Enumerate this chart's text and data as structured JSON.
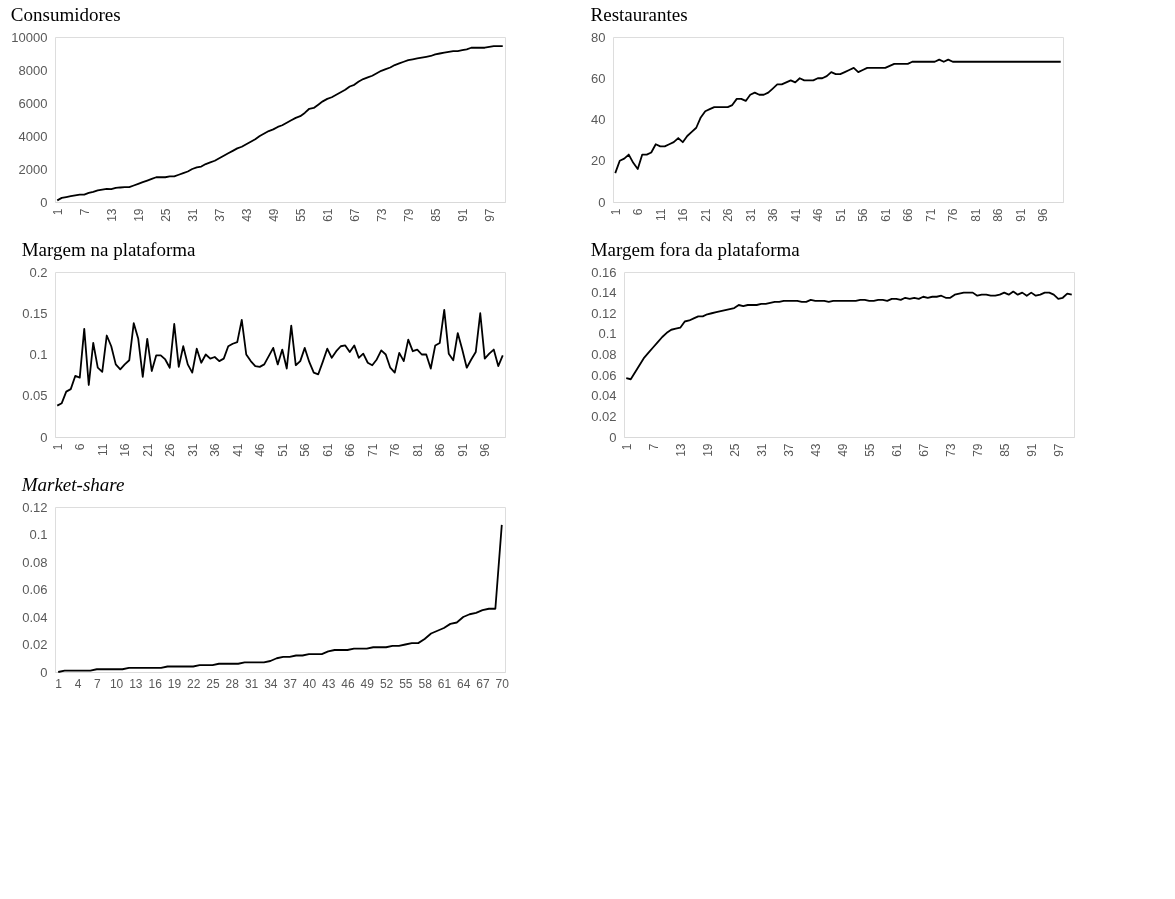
{
  "chart_data": [
    {
      "type": "line",
      "title": "Consumidores",
      "color": "#000000",
      "ylim": [
        0,
        10000
      ],
      "yticks": [
        0,
        2000,
        4000,
        6000,
        8000,
        10000
      ],
      "categories": [
        "1",
        null,
        null,
        null,
        null,
        null,
        "7",
        null,
        null,
        null,
        null,
        null,
        "13",
        null,
        null,
        null,
        null,
        null,
        "19",
        null,
        null,
        null,
        null,
        null,
        "25",
        null,
        null,
        null,
        null,
        null,
        "31",
        null,
        null,
        null,
        null,
        null,
        "37",
        null,
        null,
        null,
        null,
        null,
        "43",
        null,
        null,
        null,
        null,
        null,
        "49",
        null,
        null,
        null,
        null,
        null,
        "55",
        null,
        null,
        null,
        null,
        null,
        "61",
        null,
        null,
        null,
        null,
        null,
        "67",
        null,
        null,
        null,
        null,
        null,
        "73",
        null,
        null,
        null,
        null,
        null,
        "79",
        null,
        null,
        null,
        null,
        null,
        "85",
        null,
        null,
        null,
        null,
        null,
        "91",
        null,
        null,
        null,
        null,
        null,
        "97",
        null,
        null,
        null
      ],
      "values": [
        100,
        250,
        300,
        350,
        400,
        450,
        450,
        550,
        620,
        700,
        750,
        800,
        780,
        850,
        880,
        900,
        900,
        1000,
        1100,
        1200,
        1300,
        1400,
        1500,
        1500,
        1500,
        1550,
        1550,
        1650,
        1750,
        1850,
        2000,
        2100,
        2150,
        2300,
        2400,
        2500,
        2650,
        2800,
        2950,
        3100,
        3250,
        3350,
        3500,
        3650,
        3800,
        4000,
        4150,
        4300,
        4400,
        4550,
        4650,
        4800,
        4950,
        5100,
        5200,
        5400,
        5650,
        5700,
        5900,
        6100,
        6250,
        6350,
        6500,
        6650,
        6800,
        7000,
        7100,
        7300,
        7450,
        7550,
        7650,
        7800,
        7950,
        8050,
        8150,
        8300,
        8400,
        8500,
        8600,
        8650,
        8700,
        8750,
        8800,
        8850,
        8950,
        9000,
        9050,
        9100,
        9150,
        9150,
        9200,
        9250,
        9350,
        9350,
        9350,
        9350,
        9400,
        9450,
        9450,
        9450
      ]
    },
    {
      "type": "line",
      "title": "Restaurantes",
      "color": "#000000",
      "ylim": [
        0,
        80
      ],
      "yticks": [
        0,
        20,
        40,
        60,
        80
      ],
      "categories": [
        "1",
        null,
        null,
        null,
        null,
        "6",
        null,
        null,
        null,
        null,
        "11",
        null,
        null,
        null,
        null,
        "16",
        null,
        null,
        null,
        null,
        "21",
        null,
        null,
        null,
        null,
        "26",
        null,
        null,
        null,
        null,
        "31",
        null,
        null,
        null,
        null,
        "36",
        null,
        null,
        null,
        null,
        "41",
        null,
        null,
        null,
        null,
        "46",
        null,
        null,
        null,
        null,
        "51",
        null,
        null,
        null,
        null,
        "56",
        null,
        null,
        null,
        null,
        "61",
        null,
        null,
        null,
        null,
        "66",
        null,
        null,
        null,
        null,
        "71",
        null,
        null,
        null,
        null,
        "76",
        null,
        null,
        null,
        null,
        "81",
        null,
        null,
        null,
        null,
        "86",
        null,
        null,
        null,
        null,
        "91",
        null,
        null,
        null,
        null,
        "96",
        null,
        null,
        null,
        null
      ],
      "values": [
        14,
        20,
        21,
        23,
        19,
        16,
        23,
        23,
        24,
        28,
        27,
        27,
        28,
        29,
        31,
        29,
        32,
        34,
        36,
        41,
        44,
        45,
        46,
        46,
        46,
        46,
        47,
        50,
        50,
        49,
        52,
        53,
        52,
        52,
        53,
        55,
        57,
        57,
        58,
        59,
        58,
        60,
        59,
        59,
        59,
        60,
        60,
        61,
        63,
        62,
        62,
        63,
        64,
        65,
        63,
        64,
        65,
        65,
        65,
        65,
        65,
        66,
        67,
        67,
        67,
        67,
        68,
        68,
        68,
        68,
        68,
        68,
        69,
        68,
        69,
        68,
        68,
        68,
        68,
        68,
        68,
        68,
        68,
        68,
        68,
        68,
        68,
        68,
        68,
        68,
        68,
        68,
        68,
        68,
        68,
        68,
        68,
        68,
        68,
        68
      ]
    },
    {
      "type": "line",
      "title": "Margem na plataforma",
      "color": "#000000",
      "ylim": [
        0,
        0.2
      ],
      "yticks": [
        0,
        0.05,
        0.1,
        0.15,
        0.2
      ],
      "categories": [
        "1",
        null,
        null,
        null,
        null,
        "6",
        null,
        null,
        null,
        null,
        "11",
        null,
        null,
        null,
        null,
        "16",
        null,
        null,
        null,
        null,
        "21",
        null,
        null,
        null,
        null,
        "26",
        null,
        null,
        null,
        null,
        "31",
        null,
        null,
        null,
        null,
        "36",
        null,
        null,
        null,
        null,
        "41",
        null,
        null,
        null,
        null,
        "46",
        null,
        null,
        null,
        null,
        "51",
        null,
        null,
        null,
        null,
        "56",
        null,
        null,
        null,
        null,
        "61",
        null,
        null,
        null,
        null,
        "66",
        null,
        null,
        null,
        null,
        "71",
        null,
        null,
        null,
        null,
        "76",
        null,
        null,
        null,
        null,
        "81",
        null,
        null,
        null,
        null,
        "86",
        null,
        null,
        null,
        null,
        "91",
        null,
        null,
        null,
        null,
        "96",
        null,
        null,
        null,
        null
      ],
      "values": [
        0.038,
        0.041,
        0.055,
        0.058,
        0.074,
        0.072,
        0.131,
        0.063,
        0.114,
        0.084,
        0.079,
        0.123,
        0.11,
        0.088,
        0.082,
        0.088,
        0.093,
        0.138,
        0.119,
        0.073,
        0.119,
        0.08,
        0.099,
        0.099,
        0.094,
        0.084,
        0.137,
        0.085,
        0.11,
        0.088,
        0.078,
        0.107,
        0.09,
        0.1,
        0.095,
        0.097,
        0.092,
        0.095,
        0.11,
        0.113,
        0.115,
        0.142,
        0.1,
        0.092,
        0.086,
        0.085,
        0.088,
        0.098,
        0.108,
        0.088,
        0.106,
        0.083,
        0.135,
        0.087,
        0.092,
        0.108,
        0.091,
        0.078,
        0.076,
        0.091,
        0.107,
        0.096,
        0.104,
        0.11,
        0.111,
        0.103,
        0.111,
        0.096,
        0.101,
        0.09,
        0.087,
        0.094,
        0.105,
        0.1,
        0.084,
        0.078,
        0.102,
        0.092,
        0.118,
        0.104,
        0.106,
        0.1,
        0.1,
        0.083,
        0.111,
        0.114,
        0.154,
        0.101,
        0.093,
        0.126,
        0.106,
        0.084,
        0.094,
        0.103,
        0.15,
        0.095,
        0.101,
        0.106,
        0.086,
        0.099
      ]
    },
    {
      "type": "line",
      "title": "Margem fora da plataforma",
      "color": "#000000",
      "ylim": [
        0,
        0.16
      ],
      "yticks": [
        0,
        0.02,
        0.04,
        0.06,
        0.08,
        0.1,
        0.12,
        0.14,
        0.16
      ],
      "categories": [
        "1",
        null,
        null,
        null,
        null,
        null,
        "7",
        null,
        null,
        null,
        null,
        null,
        "13",
        null,
        null,
        null,
        null,
        null,
        "19",
        null,
        null,
        null,
        null,
        null,
        "25",
        null,
        null,
        null,
        null,
        null,
        "31",
        null,
        null,
        null,
        null,
        null,
        "37",
        null,
        null,
        null,
        null,
        null,
        "43",
        null,
        null,
        null,
        null,
        null,
        "49",
        null,
        null,
        null,
        null,
        null,
        "55",
        null,
        null,
        null,
        null,
        null,
        "61",
        null,
        null,
        null,
        null,
        null,
        "67",
        null,
        null,
        null,
        null,
        null,
        "73",
        null,
        null,
        null,
        null,
        null,
        "79",
        null,
        null,
        null,
        null,
        null,
        "85",
        null,
        null,
        null,
        null,
        null,
        "91",
        null,
        null,
        null,
        null,
        null,
        "97",
        null,
        null,
        null
      ],
      "values": [
        0.057,
        0.056,
        0.063,
        0.07,
        0.077,
        0.082,
        0.087,
        0.092,
        0.097,
        0.101,
        0.104,
        0.105,
        0.106,
        0.112,
        0.113,
        0.115,
        0.117,
        0.117,
        0.119,
        0.12,
        0.121,
        0.122,
        0.123,
        0.124,
        0.125,
        0.128,
        0.127,
        0.128,
        0.128,
        0.128,
        0.129,
        0.129,
        0.13,
        0.131,
        0.131,
        0.132,
        0.132,
        0.132,
        0.132,
        0.131,
        0.131,
        0.133,
        0.132,
        0.132,
        0.132,
        0.131,
        0.132,
        0.132,
        0.132,
        0.132,
        0.132,
        0.132,
        0.133,
        0.133,
        0.132,
        0.132,
        0.133,
        0.133,
        0.132,
        0.134,
        0.134,
        0.133,
        0.135,
        0.134,
        0.135,
        0.134,
        0.136,
        0.135,
        0.136,
        0.136,
        0.137,
        0.135,
        0.135,
        0.138,
        0.139,
        0.14,
        0.14,
        0.14,
        0.137,
        0.138,
        0.138,
        0.137,
        0.137,
        0.138,
        0.14,
        0.138,
        0.141,
        0.138,
        0.14,
        0.137,
        0.14,
        0.137,
        0.138,
        0.14,
        0.14,
        0.138,
        0.134,
        0.135,
        0.139,
        0.138
      ]
    },
    {
      "type": "line",
      "title": "Market-share",
      "color": "#000000",
      "ylim": [
        0,
        0.12
      ],
      "yticks": [
        0,
        0.02,
        0.04,
        0.06,
        0.08,
        0.1,
        0.12
      ],
      "categories": [
        "1",
        null,
        null,
        "4",
        null,
        null,
        "7",
        null,
        null,
        "10",
        null,
        null,
        "13",
        null,
        null,
        "16",
        null,
        null,
        "19",
        null,
        null,
        "22",
        null,
        null,
        "25",
        null,
        null,
        "28",
        null,
        null,
        "31",
        null,
        null,
        "34",
        null,
        null,
        "37",
        null,
        null,
        "40",
        null,
        null,
        "43",
        null,
        null,
        "46",
        null,
        null,
        "49",
        null,
        null,
        "52",
        null,
        null,
        "55",
        null,
        null,
        "58",
        null,
        null,
        "61",
        null,
        null,
        "64",
        null,
        null,
        "67",
        null,
        null,
        "70"
      ],
      "values": [
        0,
        0.001,
        0.001,
        0.001,
        0.001,
        0.001,
        0.002,
        0.002,
        0.002,
        0.002,
        0.002,
        0.003,
        0.003,
        0.003,
        0.003,
        0.003,
        0.003,
        0.004,
        0.004,
        0.004,
        0.004,
        0.004,
        0.005,
        0.005,
        0.005,
        0.006,
        0.006,
        0.006,
        0.006,
        0.007,
        0.007,
        0.007,
        0.007,
        0.008,
        0.01,
        0.011,
        0.011,
        0.012,
        0.012,
        0.013,
        0.013,
        0.013,
        0.015,
        0.016,
        0.016,
        0.016,
        0.017,
        0.017,
        0.017,
        0.018,
        0.018,
        0.018,
        0.019,
        0.019,
        0.02,
        0.021,
        0.021,
        0.024,
        0.028,
        0.03,
        0.032,
        0.035,
        0.036,
        0.04,
        0.042,
        0.043,
        0.045,
        0.046,
        0.046,
        0.107
      ]
    }
  ]
}
